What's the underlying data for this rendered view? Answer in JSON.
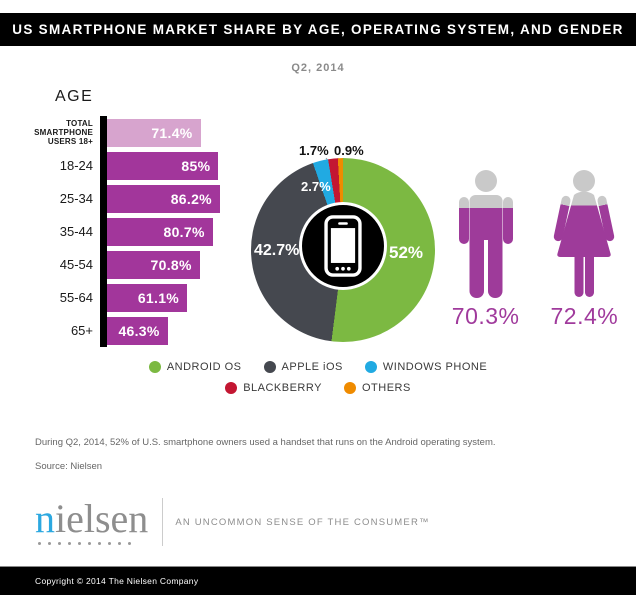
{
  "header": {
    "title": "US SMARTPHONE MARKET SHARE BY AGE, OPERATING SYSTEM, AND GENDER"
  },
  "subtitle": "Q2, 2014",
  "colors": {
    "bar_magenta": "#a2369b",
    "bar_light_pink": "#d7a4ce",
    "gender_magenta": "#9e3b9a",
    "gender_gray": "#c9c9c9",
    "android_green": "#7cb942",
    "apple_gray": "#45484f",
    "windows_blue": "#21aae2",
    "blackberry_red": "#c31632",
    "others_orange": "#ef8b00"
  },
  "chart_data": [
    {
      "type": "bar",
      "title": "AGE",
      "orientation": "horizontal",
      "categories": [
        "TOTAL SMARTPHONE USERS 18+",
        "18-24",
        "25-34",
        "35-44",
        "45-54",
        "55-64",
        "65+"
      ],
      "values": [
        71.4,
        85,
        86.2,
        80.7,
        70.8,
        61.1,
        46.3
      ],
      "labels": [
        "71.4%",
        "85%",
        "86.2%",
        "80.7%",
        "70.8%",
        "61.1%",
        "46.3%"
      ],
      "xlim": [
        0,
        100
      ],
      "grid": false
    },
    {
      "type": "pie",
      "title": "Smartphone OS market share Q2 2014",
      "labels": [
        "ANDROID OS",
        "APPLE iOS",
        "WINDOWS PHONE",
        "BLACKBERRY",
        "OTHERS"
      ],
      "values": [
        52,
        42.7,
        2.7,
        1.7,
        0.9
      ],
      "display_labels": [
        "52%",
        "42.7%",
        "2.7%",
        "1.7%",
        "0.9%"
      ],
      "colors": [
        "#7cb942",
        "#45484f",
        "#21aae2",
        "#c31632",
        "#ef8b00"
      ],
      "start_angle_deg": 0,
      "direction": "clockwise",
      "donut": true
    },
    {
      "type": "pictogram",
      "title": "Smartphone penetration by gender",
      "categories": [
        "Male",
        "Female"
      ],
      "values": [
        70.3,
        72.4
      ],
      "labels": [
        "70.3%",
        "72.4%"
      ]
    }
  ],
  "legend": {
    "items": [
      {
        "label": "ANDROID OS",
        "color": "#7cb942"
      },
      {
        "label": "APPLE iOS",
        "color": "#45484f"
      },
      {
        "label": "WINDOWS PHONE",
        "color": "#21aae2"
      },
      {
        "label": "BLACKBERRY",
        "color": "#c31632"
      },
      {
        "label": "OTHERS",
        "color": "#ef8b00"
      }
    ]
  },
  "footnote": "During Q2, 2014, 52% of U.S. smartphone owners used a handset that runs on the Android operating system.",
  "source": "Source: Nielsen",
  "brand": {
    "logo_first": "n",
    "logo_rest": "ielsen",
    "dots": 10,
    "tagline": "AN UNCOMMON SENSE OF THE CONSUMER™"
  },
  "footer": {
    "copyright": "Copyright © 2014 The Nielsen Company"
  }
}
